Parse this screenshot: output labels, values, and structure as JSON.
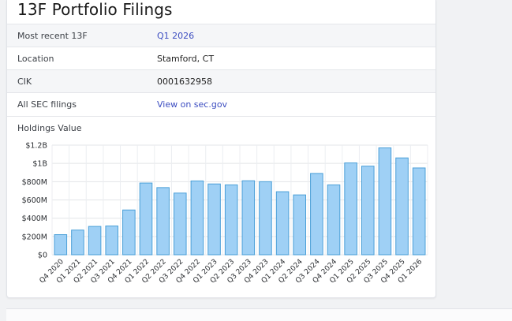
{
  "page": {
    "title": "13F Portfolio Filings"
  },
  "info": {
    "most_recent_label": "Most recent 13F",
    "most_recent_value": "Q1 2026",
    "location_label": "Location",
    "location_value": "Stamford, CT",
    "cik_label": "CIK",
    "cik_value": "0001632958",
    "sec_label": "All SEC filings",
    "sec_value": "View on sec.gov"
  },
  "holdings_label": "Holdings Value",
  "chart_data": {
    "type": "bar",
    "categories": [
      "Q4 2020",
      "Q1 2021",
      "Q2 2021",
      "Q3 2021",
      "Q4 2021",
      "Q1 2022",
      "Q2 2022",
      "Q3 2022",
      "Q4 2022",
      "Q1 2023",
      "Q2 2023",
      "Q3 2023",
      "Q4 2023",
      "Q1 2024",
      "Q2 2024",
      "Q3 2024",
      "Q4 2024",
      "Q1 2025",
      "Q2 2025",
      "Q3 2025",
      "Q4 2025",
      "Q1 2026"
    ],
    "values": [
      220000000,
      270000000,
      310000000,
      315000000,
      490000000,
      785000000,
      735000000,
      675000000,
      808000000,
      775000000,
      765000000,
      810000000,
      800000000,
      690000000,
      655000000,
      890000000,
      765000000,
      1005000000,
      970000000,
      1170000000,
      1060000000,
      950000000
    ],
    "yticks": [
      "$0",
      "$200M",
      "$400M",
      "$600M",
      "$800M",
      "$1B",
      "$1.2B"
    ],
    "ytick_values": [
      0,
      200000000,
      400000000,
      600000000,
      800000000,
      1000000000,
      1200000000
    ],
    "ylim": [
      0,
      1200000000
    ],
    "grid": true,
    "bar_color": "#9fd0f5",
    "bar_stroke": "#4a9fd8"
  }
}
